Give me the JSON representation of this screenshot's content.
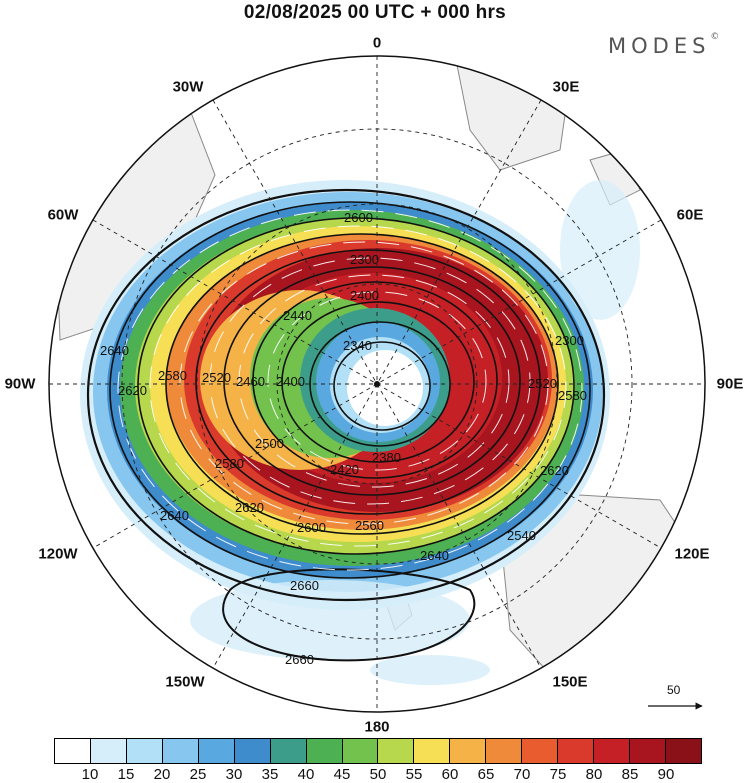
{
  "title": "02/08/2025  00 UTC  + 000 hrs",
  "brand": {
    "name": "MODES",
    "mark": "©"
  },
  "longitudes": {
    "top": "0",
    "bottom": "180",
    "left": "90W",
    "right": "90E",
    "nw1": "30W",
    "nw2": "60W",
    "sw1": "120W",
    "sw2": "150W",
    "ne1": "30E",
    "ne2": "60E",
    "se1": "120E",
    "se2": "150E"
  },
  "contour_labels": [
    "2600",
    "2300",
    "2400",
    "2340",
    "2440",
    "2580",
    "2520",
    "2460",
    "2400",
    "2640",
    "2620",
    "2580",
    "2500",
    "2420",
    "2380",
    "2520",
    "2560",
    "2600",
    "2620",
    "2640",
    "2640",
    "2660",
    "2660",
    "2620",
    "2580",
    "2540",
    "2300"
  ],
  "vector_ref": "50",
  "colorbar": {
    "colors": [
      "#ffffff",
      "#d6eefa",
      "#b2e0f7",
      "#86c6ef",
      "#5aa8e0",
      "#3f8ccd",
      "#3c9e8a",
      "#4db052",
      "#72c24d",
      "#b7d84c",
      "#f6df55",
      "#f4b247",
      "#ef8a3a",
      "#e95c2f",
      "#d93a2b",
      "#c42025",
      "#a8151f",
      "#8b1119"
    ],
    "ticks": [
      "10",
      "15",
      "20",
      "25",
      "30",
      "35",
      "40",
      "45",
      "50",
      "55",
      "60",
      "65",
      "70",
      "75",
      "80",
      "85",
      "90"
    ]
  }
}
